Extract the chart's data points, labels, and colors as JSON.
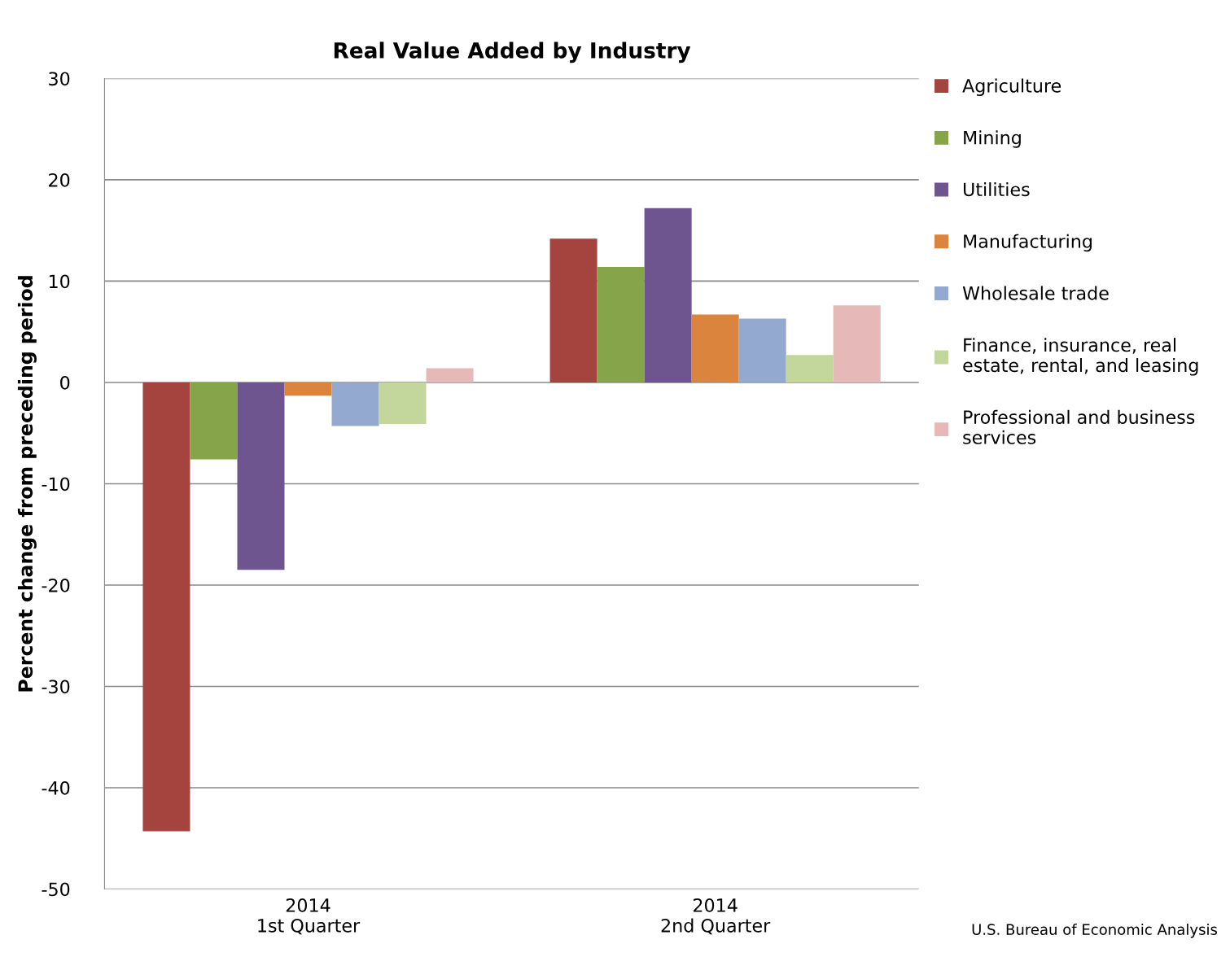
{
  "chart_data": {
    "type": "bar",
    "title": "Real Value Added by Industry",
    "ylabel": "Percent change from preceding period",
    "categories": [
      "2014\n1st Quarter",
      "2014\n2nd Quarter"
    ],
    "series": [
      {
        "name": "Agriculture",
        "color": "#a5443f",
        "values": [
          -44.3,
          14.2
        ]
      },
      {
        "name": "Mining",
        "color": "#86a44a",
        "values": [
          -7.6,
          11.4
        ]
      },
      {
        "name": "Utilities",
        "color": "#6f558f",
        "values": [
          -18.5,
          17.2
        ]
      },
      {
        "name": "Manufacturing",
        "color": "#db843d",
        "values": [
          -1.3,
          6.7
        ]
      },
      {
        "name": "Wholesale trade",
        "color": "#93a9cf",
        "values": [
          -4.3,
          6.3
        ]
      },
      {
        "name": "Finance, insurance, real\nestate, rental, and leasing",
        "color": "#c3d69b",
        "values": [
          -4.1,
          2.7
        ]
      },
      {
        "name": "Professional and business\nservices",
        "color": "#e6b9b8",
        "values": [
          1.4,
          7.6
        ]
      }
    ],
    "ylim": [
      -50,
      30
    ],
    "yticks": [
      -50,
      -40,
      -30,
      -20,
      -10,
      0,
      10,
      20,
      30
    ],
    "grid": "y",
    "legend": "right",
    "annotations": [
      "U.S. Bureau of Economic Analysis"
    ]
  }
}
